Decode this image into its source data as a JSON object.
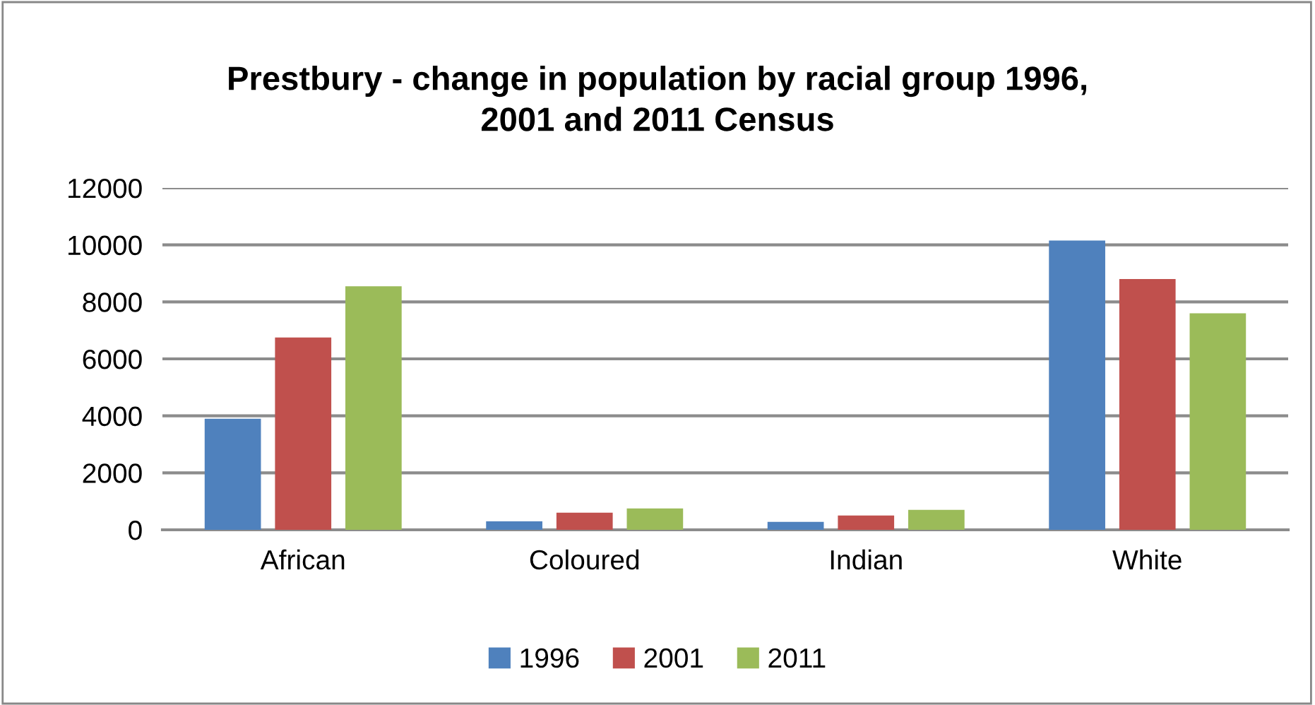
{
  "chart_data": {
    "type": "bar",
    "title": "Prestbury - change in population by racial group 1996,\n2001 and 2011 Census",
    "categories": [
      "African",
      "Coloured",
      "Indian",
      "White"
    ],
    "series": [
      {
        "name": "1996",
        "color": "#4f81bd",
        "values": [
          3900,
          300,
          280,
          10150
        ]
      },
      {
        "name": "2001",
        "color": "#c0504d",
        "values": [
          6750,
          600,
          500,
          8800
        ]
      },
      {
        "name": "2011",
        "color": "#9bbb59",
        "values": [
          8550,
          750,
          700,
          7600
        ]
      }
    ],
    "ylim": [
      0,
      12000
    ],
    "yticks": [
      0,
      2000,
      4000,
      6000,
      8000,
      10000,
      12000
    ],
    "grid": "y",
    "legend": "bottom"
  }
}
